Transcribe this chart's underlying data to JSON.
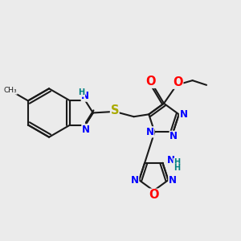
{
  "background_color": "#EBEBEB",
  "bond_color": "#1a1a1a",
  "bond_width": 1.5,
  "atom_colors": {
    "N": "#0000FF",
    "O": "#FF0000",
    "S": "#AAAA00",
    "C": "#1a1a1a",
    "H": "#008080"
  },
  "font_size": 8.5,
  "figsize": [
    3.0,
    3.0
  ],
  "dpi": 100
}
